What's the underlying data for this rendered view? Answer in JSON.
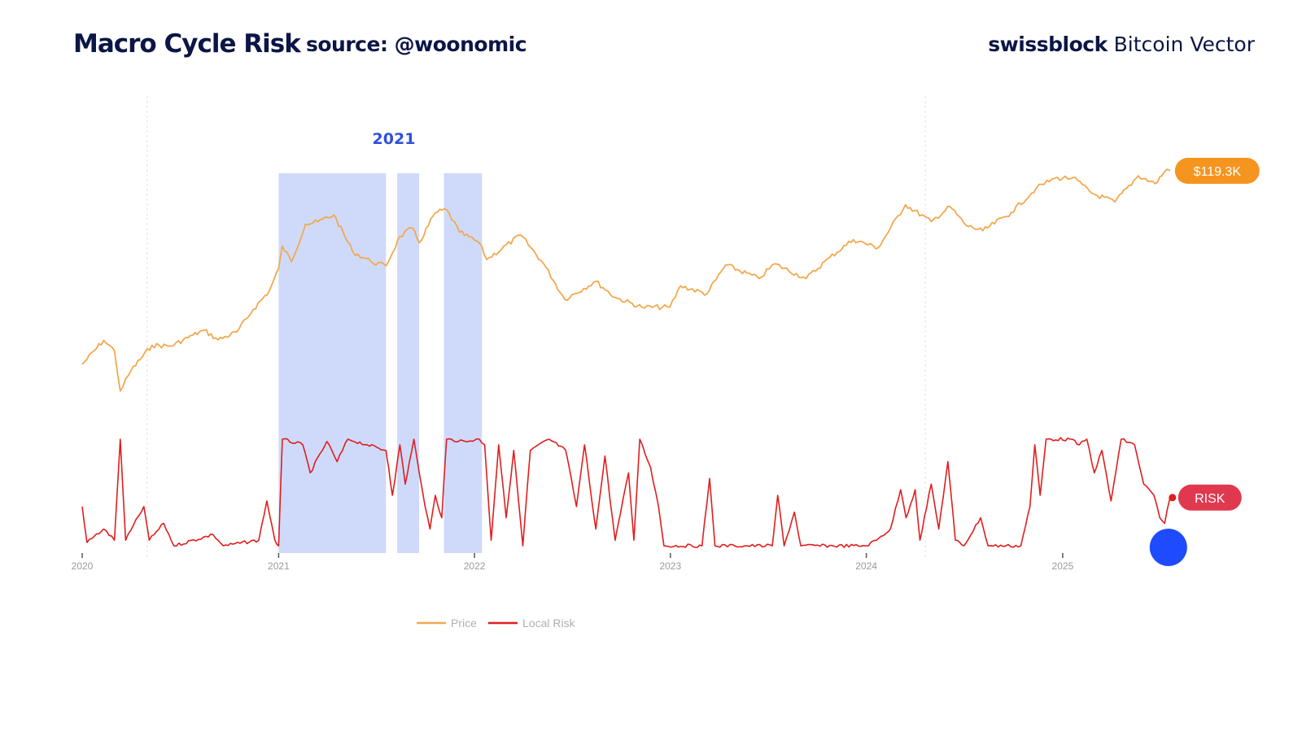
{
  "header": {
    "title": "Macro Cycle Risk",
    "source": "source: @woonomic",
    "brand_name": "swissblock",
    "brand_product": "Bitcoin Vector"
  },
  "colors": {
    "price": "#f2a84e",
    "risk": "#e01e1e",
    "highlight": "#cfdafa",
    "highlight_label": "#2f4fe0",
    "price_badge": "#f5951f",
    "risk_badge": "#e0394f",
    "marker": "#1f4bff",
    "title": "#0b1646"
  },
  "chart_data": {
    "type": "line",
    "x_range": [
      "2020-01-01",
      "2025-12-31"
    ],
    "x_ticks": [
      "2020",
      "2021",
      "2022",
      "2023",
      "2024",
      "2025"
    ],
    "grid": false,
    "legend": {
      "position": "bottom-center",
      "items": [
        "Price",
        "Local Risk"
      ]
    },
    "price_axis": {
      "scale": "log",
      "range": [
        3900,
        170000
      ]
    },
    "risk_axis": {
      "range": [
        0,
        1
      ]
    },
    "highlight_label": "2021",
    "highlights": [
      {
        "start": "2021-01-01",
        "end": "2021-07-20"
      },
      {
        "start": "2021-08-10",
        "end": "2021-09-20"
      },
      {
        "start": "2021-11-05",
        "end": "2022-01-15"
      }
    ],
    "series": [
      {
        "name": "Price",
        "axis": "price",
        "points": [
          [
            "2020-01-01",
            7200
          ],
          [
            "2020-02-10",
            10200
          ],
          [
            "2020-03-01",
            8800
          ],
          [
            "2020-03-12",
            4900
          ],
          [
            "2020-04-01",
            6600
          ],
          [
            "2020-05-10",
            9500
          ],
          [
            "2020-06-15",
            9400
          ],
          [
            "2020-07-25",
            11000
          ],
          [
            "2020-08-15",
            11800
          ],
          [
            "2020-09-10",
            10300
          ],
          [
            "2020-10-15",
            11500
          ],
          [
            "2020-11-15",
            16000
          ],
          [
            "2020-12-15",
            21000
          ],
          [
            "2021-01-01",
            29000
          ],
          [
            "2021-01-08",
            40000
          ],
          [
            "2021-01-25",
            32000
          ],
          [
            "2021-02-20",
            55000
          ],
          [
            "2021-03-15",
            57000
          ],
          [
            "2021-04-14",
            63000
          ],
          [
            "2021-05-19",
            37000
          ],
          [
            "2021-06-22",
            32000
          ],
          [
            "2021-07-20",
            30000
          ],
          [
            "2021-08-15",
            46000
          ],
          [
            "2021-09-07",
            52000
          ],
          [
            "2021-09-20",
            42000
          ],
          [
            "2021-10-20",
            65000
          ],
          [
            "2021-11-10",
            68000
          ],
          [
            "2021-12-04",
            49000
          ],
          [
            "2022-01-10",
            42000
          ],
          [
            "2022-01-24",
            33000
          ],
          [
            "2022-03-28",
            47000
          ],
          [
            "2022-05-10",
            31000
          ],
          [
            "2022-06-18",
            18500
          ],
          [
            "2022-08-15",
            24000
          ],
          [
            "2022-09-20",
            19000
          ],
          [
            "2022-11-09",
            16500
          ],
          [
            "2022-12-31",
            16500
          ],
          [
            "2023-01-20",
            22500
          ],
          [
            "2023-03-10",
            20000
          ],
          [
            "2023-04-14",
            30500
          ],
          [
            "2023-06-15",
            25000
          ],
          [
            "2023-07-14",
            31000
          ],
          [
            "2023-09-11",
            25000
          ],
          [
            "2023-10-25",
            34000
          ],
          [
            "2023-12-08",
            44000
          ],
          [
            "2024-01-23",
            39000
          ],
          [
            "2024-03-14",
            73000
          ],
          [
            "2024-05-01",
            57000
          ],
          [
            "2024-06-05",
            71000
          ],
          [
            "2024-07-05",
            54000
          ],
          [
            "2024-08-05",
            50000
          ],
          [
            "2024-09-27",
            65000
          ],
          [
            "2024-11-13",
            93000
          ],
          [
            "2024-12-17",
            107000
          ],
          [
            "2025-01-20",
            108000
          ],
          [
            "2025-02-25",
            86000
          ],
          [
            "2025-04-08",
            76000
          ],
          [
            "2025-05-22",
            111000
          ],
          [
            "2025-06-22",
            99000
          ],
          [
            "2025-07-14",
            122000
          ],
          [
            "2025-07-20",
            119300
          ]
        ]
      },
      {
        "name": "Local Risk",
        "axis": "risk",
        "points": [
          [
            "2020-01-01",
            0.4
          ],
          [
            "2020-01-10",
            0.08
          ],
          [
            "2020-02-10",
            0.2
          ],
          [
            "2020-03-01",
            0.1
          ],
          [
            "2020-03-12",
            1.0
          ],
          [
            "2020-03-22",
            0.1
          ],
          [
            "2020-04-25",
            0.4
          ],
          [
            "2020-05-05",
            0.1
          ],
          [
            "2020-06-01",
            0.25
          ],
          [
            "2020-06-20",
            0.05
          ],
          [
            "2020-09-01",
            0.15
          ],
          [
            "2020-09-20",
            0.05
          ],
          [
            "2020-11-25",
            0.1
          ],
          [
            "2020-12-10",
            0.45
          ],
          [
            "2020-12-25",
            0.1
          ],
          [
            "2021-01-01",
            0.05
          ],
          [
            "2021-01-08",
            1.0
          ],
          [
            "2021-02-15",
            0.95
          ],
          [
            "2021-03-01",
            0.7
          ],
          [
            "2021-04-01",
            0.98
          ],
          [
            "2021-04-20",
            0.8
          ],
          [
            "2021-05-10",
            1.0
          ],
          [
            "2021-06-15",
            0.95
          ],
          [
            "2021-07-20",
            0.9
          ],
          [
            "2021-07-25",
            0.75
          ],
          [
            "2021-08-01",
            0.5
          ],
          [
            "2021-08-15",
            0.95
          ],
          [
            "2021-08-25",
            0.6
          ],
          [
            "2021-09-10",
            1.0
          ],
          [
            "2021-09-20",
            0.7
          ],
          [
            "2021-10-01",
            0.4
          ],
          [
            "2021-10-10",
            0.2
          ],
          [
            "2021-10-20",
            0.5
          ],
          [
            "2021-11-01",
            0.3
          ],
          [
            "2021-11-10",
            1.0
          ],
          [
            "2021-12-15",
            0.98
          ],
          [
            "2022-01-10",
            1.0
          ],
          [
            "2022-01-20",
            0.95
          ],
          [
            "2022-02-01",
            0.1
          ],
          [
            "2022-02-15",
            0.95
          ],
          [
            "2022-03-01",
            0.3
          ],
          [
            "2022-03-15",
            0.9
          ],
          [
            "2022-04-01",
            0.05
          ],
          [
            "2022-04-15",
            0.9
          ],
          [
            "2022-05-20",
            1.0
          ],
          [
            "2022-06-20",
            0.9
          ],
          [
            "2022-07-10",
            0.4
          ],
          [
            "2022-07-25",
            0.95
          ],
          [
            "2022-08-15",
            0.2
          ],
          [
            "2022-09-01",
            0.85
          ],
          [
            "2022-09-20",
            0.1
          ],
          [
            "2022-10-15",
            0.7
          ],
          [
            "2022-10-25",
            0.1
          ],
          [
            "2022-11-05",
            1.0
          ],
          [
            "2022-11-25",
            0.75
          ],
          [
            "2022-12-10",
            0.4
          ],
          [
            "2022-12-20",
            0.05
          ],
          [
            "2023-03-01",
            0.05
          ],
          [
            "2023-03-15",
            0.65
          ],
          [
            "2023-03-25",
            0.05
          ],
          [
            "2023-05-01",
            0.05
          ],
          [
            "2023-07-10",
            0.05
          ],
          [
            "2023-07-20",
            0.5
          ],
          [
            "2023-08-01",
            0.05
          ],
          [
            "2023-08-20",
            0.35
          ],
          [
            "2023-09-01",
            0.05
          ],
          [
            "2023-12-31",
            0.05
          ],
          [
            "2024-01-20",
            0.1
          ],
          [
            "2024-02-15",
            0.2
          ],
          [
            "2024-03-05",
            0.55
          ],
          [
            "2024-03-15",
            0.3
          ],
          [
            "2024-04-01",
            0.55
          ],
          [
            "2024-04-10",
            0.1
          ],
          [
            "2024-05-01",
            0.6
          ],
          [
            "2024-05-15",
            0.2
          ],
          [
            "2024-06-01",
            0.8
          ],
          [
            "2024-06-15",
            0.1
          ],
          [
            "2024-07-01",
            0.05
          ],
          [
            "2024-08-01",
            0.3
          ],
          [
            "2024-08-15",
            0.05
          ],
          [
            "2024-10-15",
            0.05
          ],
          [
            "2024-11-01",
            0.4
          ],
          [
            "2024-11-10",
            0.95
          ],
          [
            "2024-11-20",
            0.5
          ],
          [
            "2024-12-01",
            1.0
          ],
          [
            "2025-01-15",
            1.0
          ],
          [
            "2025-02-01",
            0.95
          ],
          [
            "2025-02-15",
            1.0
          ],
          [
            "2025-03-01",
            0.7
          ],
          [
            "2025-03-15",
            0.9
          ],
          [
            "2025-04-01",
            0.45
          ],
          [
            "2025-04-20",
            1.0
          ],
          [
            "2025-05-15",
            0.95
          ],
          [
            "2025-06-01",
            0.6
          ],
          [
            "2025-06-20",
            0.5
          ],
          [
            "2025-07-01",
            0.3
          ],
          [
            "2025-07-10",
            0.25
          ],
          [
            "2025-07-20",
            0.48
          ]
        ]
      }
    ],
    "annotations": {
      "price_badge": "$119.3K",
      "risk_badge": "RISK"
    }
  }
}
